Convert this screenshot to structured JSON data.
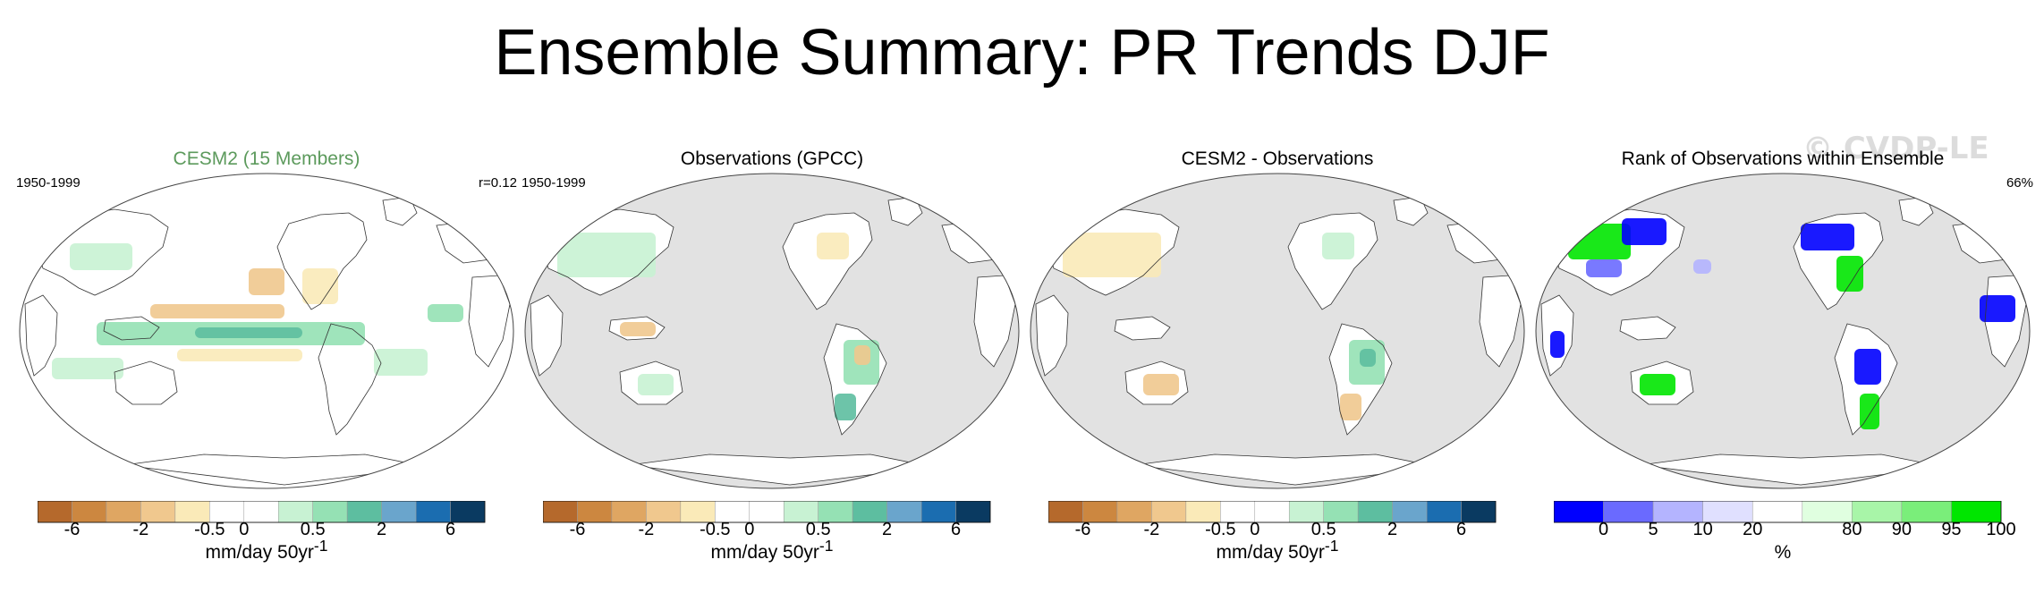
{
  "title": "Ensemble Summary: PR Trends DJF",
  "watermark": "© CVDP-LE",
  "colors": {
    "land": "#ffffff",
    "ocean_missing": "#e2e2e2",
    "trend_scale": [
      "#b5692c",
      "#cc8740",
      "#dfa662",
      "#f0c88e",
      "#faeab8",
      "#ffffff",
      "#ffffff",
      "#c8f2d3",
      "#95e1b4",
      "#5dbea0",
      "#6aa5cc",
      "#1b6db0",
      "#0a3a61"
    ],
    "rank_scale": [
      "#0000ff",
      "#6a6aff",
      "#b4b4ff",
      "#e0e0ff",
      "#ffffff",
      "#e0ffe0",
      "#a8f5a8",
      "#7aee7a",
      "#00e600"
    ]
  },
  "panels": [
    {
      "title": "CESM2 (15 Members)",
      "title_color": "#5c9a5c",
      "left_label": "1950-1999",
      "right_label": "r=0.12",
      "map_style": "model",
      "colorbar": {
        "ticks": [
          "-6",
          "-2",
          "-0.5",
          "0",
          "0.5",
          "2",
          "6"
        ],
        "unit": "mm/day 50yr",
        "unit_sup": "-1"
      }
    },
    {
      "title": "Observations (GPCC)",
      "title_color": "#000000",
      "left_label": "1950-1999",
      "right_label": "",
      "map_style": "obs",
      "colorbar": {
        "ticks": [
          "-6",
          "-2",
          "-0.5",
          "0",
          "0.5",
          "2",
          "6"
        ],
        "unit": "mm/day 50yr",
        "unit_sup": "-1"
      }
    },
    {
      "title": "CESM2 - Observations",
      "title_color": "#000000",
      "left_label": "",
      "right_label": "",
      "map_style": "diff",
      "colorbar": {
        "ticks": [
          "-6",
          "-2",
          "-0.5",
          "0",
          "0.5",
          "2",
          "6"
        ],
        "unit": "mm/day 50yr",
        "unit_sup": "-1"
      }
    },
    {
      "title": "Rank of Observations within Ensemble",
      "title_color": "#000000",
      "left_label": "",
      "right_label": "66%",
      "map_style": "rank",
      "colorbar": {
        "ticks": [
          "0",
          "5",
          "10",
          "20",
          "80",
          "90",
          "95",
          "100"
        ],
        "unit": "%",
        "unit_sup": ""
      }
    }
  ]
}
